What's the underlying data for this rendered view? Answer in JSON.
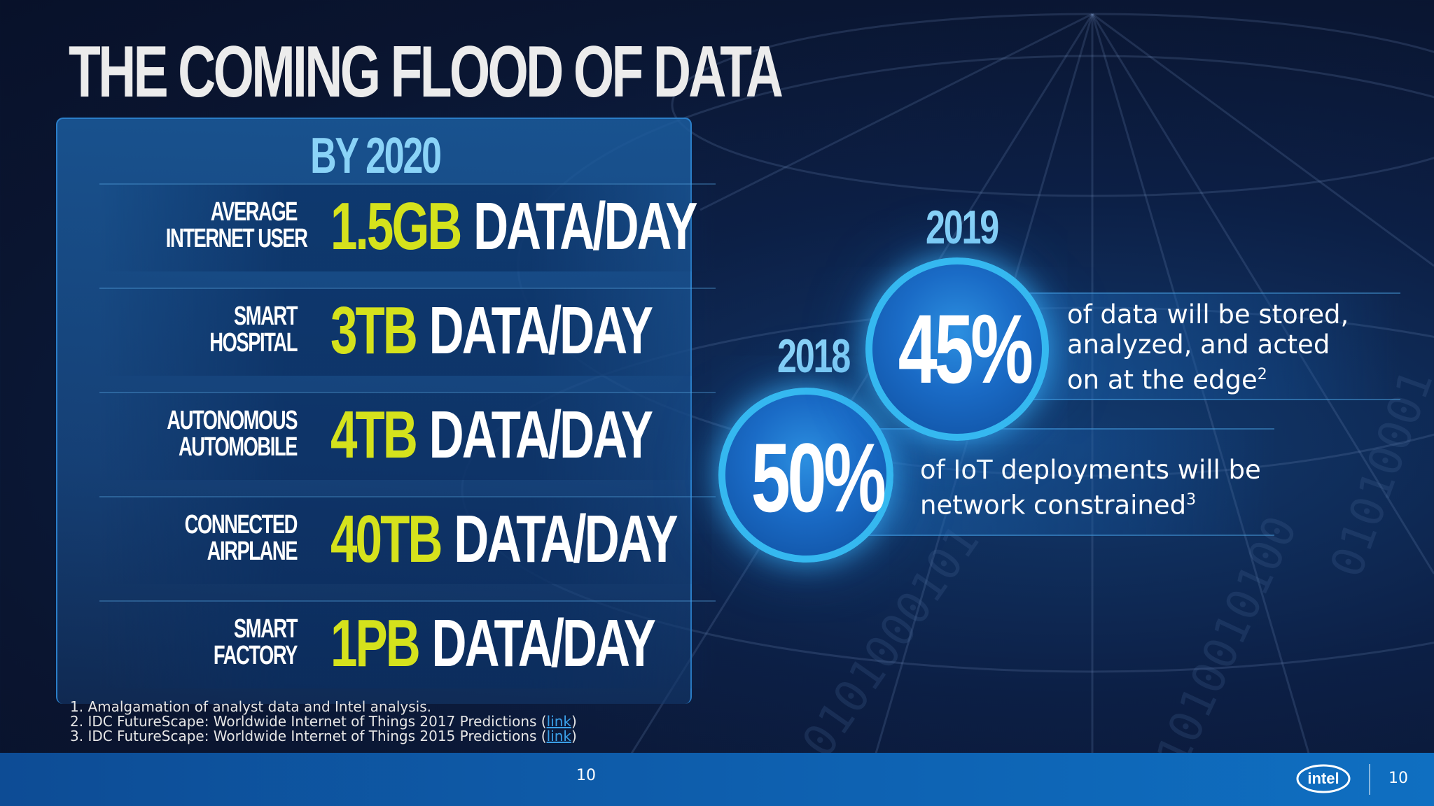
{
  "title": "THE COMING FLOOD OF DATA",
  "panel": {
    "heading": "BY 2020",
    "rows": [
      {
        "label_line1": "AVERAGE",
        "label_line2": "INTERNET USER",
        "amount": "1.5GB",
        "unit": "DATA/DAY"
      },
      {
        "label_line1": "SMART",
        "label_line2": "HOSPITAL",
        "amount": "3TB",
        "unit": "DATA/DAY"
      },
      {
        "label_line1": "AUTONOMOUS",
        "label_line2": "AUTOMOBILE",
        "amount": "4TB",
        "unit": "DATA/DAY"
      },
      {
        "label_line1": "CONNECTED",
        "label_line2": "AIRPLANE",
        "amount": "40TB",
        "unit": "DATA/DAY"
      },
      {
        "label_line1": "SMART",
        "label_line2": "FACTORY",
        "amount": "1PB",
        "unit": "DATA/DAY"
      }
    ]
  },
  "stats": [
    {
      "year": "2019",
      "value": "45%",
      "line1": "of data will be stored,",
      "line2": "analyzed, and acted",
      "line3_pre": "on at the edge",
      "footnote_mark": "2"
    },
    {
      "year": "2018",
      "value": "50%",
      "line1": "of IoT deployments will be",
      "line2_pre": "network constrained",
      "footnote_mark": "3"
    }
  ],
  "footnotes": {
    "n1": "1. Amalgamation of analyst data and Intel analysis.",
    "n2_pre": "2. IDC FutureScape: Worldwide Internet of Things 2017 Predictions (",
    "n3_pre": "3. IDC FutureScape: Worldwide Internet of Things 2015 Predictions (",
    "link_text": "link",
    "close": ")"
  },
  "footer": {
    "page_center": "10",
    "page_right": "10",
    "logo_text": "intel"
  },
  "background_binary": [
    "0101000101",
    "1010010100",
    "01010001"
  ],
  "colors": {
    "accent_yellow": "#d5e21c",
    "accent_light_blue": "#8ad3f7",
    "circle_ring": "#35b8f0",
    "bottom_bar": "#0e62b2"
  }
}
